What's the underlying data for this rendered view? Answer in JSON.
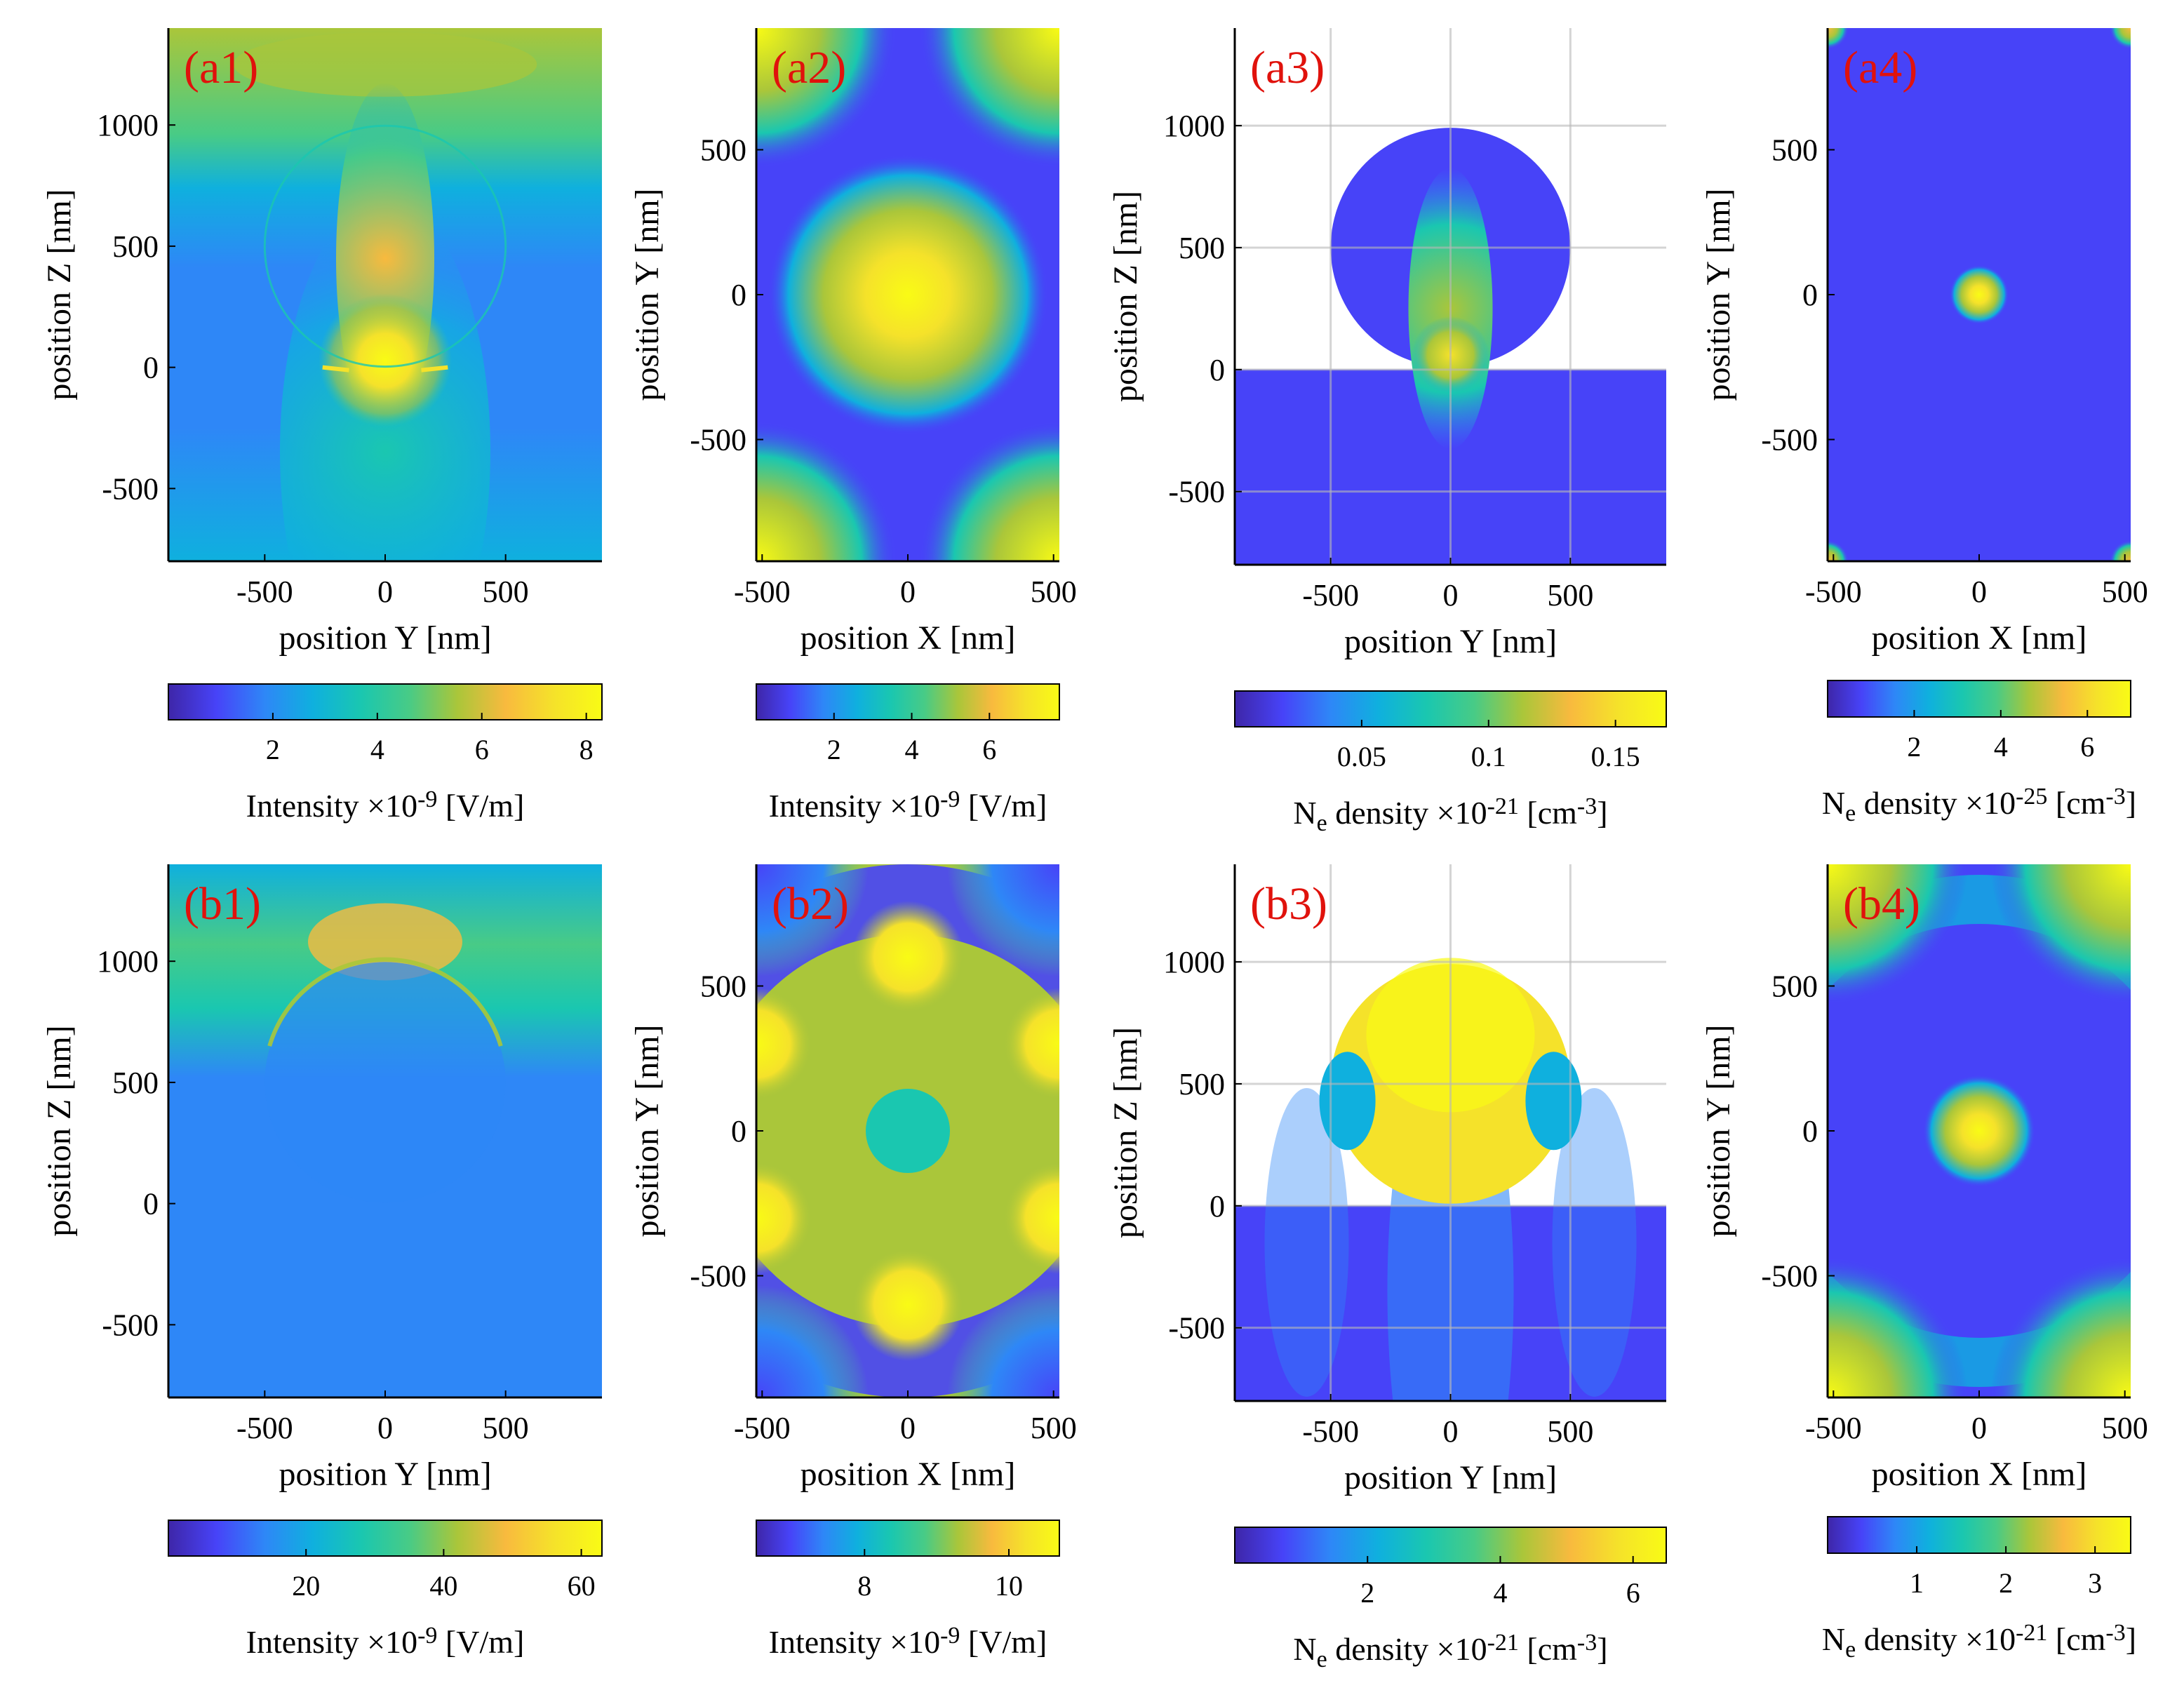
{
  "colors": {
    "panel_label": "#e0120c",
    "grid": "#b8b8b8",
    "colormap": [
      "#3e26a8",
      "#4743f8",
      "#2e87f7",
      "#0fb0de",
      "#1ac7b0",
      "#48cb86",
      "#aac63a",
      "#f8ba3e",
      "#f5e22a",
      "#f9fb15"
    ]
  },
  "chart_data": [
    {
      "id": "a1",
      "type": "heatmap",
      "label": "(a1)",
      "xlabel": "position Y [nm]",
      "ylabel": "position Z [nm]",
      "xlim": [
        -900,
        900
      ],
      "ylim": [
        -800,
        1400
      ],
      "xticks": [
        {
          "v": -500,
          "t": "-500"
        },
        {
          "v": 0,
          "t": "0"
        },
        {
          "v": 500,
          "t": "500"
        }
      ],
      "yticks": [
        {
          "v": -500,
          "t": "-500"
        },
        {
          "v": 0,
          "t": "0"
        },
        {
          "v": 500,
          "t": "500"
        },
        {
          "v": 1000,
          "t": "1000"
        }
      ],
      "particle": {
        "center_z": 500,
        "radius": 500
      },
      "colorbar": {
        "label_pre": "Intensity ×10",
        "label_exp": "-9",
        "label_post": " [V/m]",
        "range": [
          0,
          8.3
        ],
        "ticks": [
          {
            "v": 2,
            "t": "2"
          },
          {
            "v": 4,
            "t": "4"
          },
          {
            "v": 6,
            "t": "6"
          },
          {
            "v": 8,
            "t": "8"
          }
        ]
      }
    },
    {
      "id": "a2",
      "type": "heatmap",
      "label": "(a2)",
      "xlabel": "position X [nm]",
      "ylabel": "position Y [nm]",
      "xlim": [
        -520,
        520
      ],
      "ylim": [
        -920,
        920
      ],
      "xticks": [
        {
          "v": -500,
          "t": "-500"
        },
        {
          "v": 0,
          "t": "0"
        },
        {
          "v": 500,
          "t": "500"
        }
      ],
      "yticks": [
        {
          "v": -500,
          "t": "-500"
        },
        {
          "v": 0,
          "t": "0"
        },
        {
          "v": 500,
          "t": "500"
        }
      ],
      "colorbar": {
        "label_pre": "Intensity ×10",
        "label_exp": "-9",
        "label_post": " [V/m]",
        "range": [
          0,
          7.8
        ],
        "ticks": [
          {
            "v": 2,
            "t": "2"
          },
          {
            "v": 4,
            "t": "4"
          },
          {
            "v": 6,
            "t": "6"
          }
        ]
      }
    },
    {
      "id": "a3",
      "type": "heatmap",
      "label": "(a3)",
      "xlabel": "position Y [nm]",
      "ylabel": "position Z [nm]",
      "xlim": [
        -900,
        900
      ],
      "ylim": [
        -800,
        1400
      ],
      "xticks": [
        {
          "v": -500,
          "t": "-500"
        },
        {
          "v": 0,
          "t": "0"
        },
        {
          "v": 500,
          "t": "500"
        }
      ],
      "yticks": [
        {
          "v": -500,
          "t": "-500"
        },
        {
          "v": 0,
          "t": "0"
        },
        {
          "v": 500,
          "t": "500"
        },
        {
          "v": 1000,
          "t": "1000"
        }
      ],
      "grid": true,
      "particle": {
        "center_z": 500,
        "radius": 500
      },
      "colorbar": {
        "label_pre": "N",
        "label_sub": "e",
        "label_mid": " density ×10",
        "label_exp": "-21",
        "label_post": " [cm",
        "label_exp2": "-3",
        "label_end": "]",
        "range": [
          0,
          0.17
        ],
        "ticks": [
          {
            "v": 0.05,
            "t": "0.05"
          },
          {
            "v": 0.1,
            "t": "0.1"
          },
          {
            "v": 0.15,
            "t": "0.15"
          }
        ]
      }
    },
    {
      "id": "a4",
      "type": "heatmap",
      "label": "(a4)",
      "xlabel": "position X [nm]",
      "ylabel": "position Y [nm]",
      "xlim": [
        -520,
        520
      ],
      "ylim": [
        -920,
        920
      ],
      "xticks": [
        {
          "v": -500,
          "t": "-500"
        },
        {
          "v": 0,
          "t": "0"
        },
        {
          "v": 500,
          "t": "500"
        }
      ],
      "yticks": [
        {
          "v": -500,
          "t": "-500"
        },
        {
          "v": 0,
          "t": "0"
        },
        {
          "v": 500,
          "t": "500"
        }
      ],
      "colorbar": {
        "label_pre": "N",
        "label_sub": "e",
        "label_mid": " density ×10",
        "label_exp": "-25",
        "label_post": " [cm",
        "label_exp2": "-3",
        "label_end": "]",
        "range": [
          0,
          7
        ],
        "ticks": [
          {
            "v": 2,
            "t": "2"
          },
          {
            "v": 4,
            "t": "4"
          },
          {
            "v": 6,
            "t": "6"
          }
        ]
      }
    },
    {
      "id": "b1",
      "type": "heatmap",
      "label": "(b1)",
      "xlabel": "position Y [nm]",
      "ylabel": "position Z [nm]",
      "xlim": [
        -900,
        900
      ],
      "ylim": [
        -800,
        1400
      ],
      "xticks": [
        {
          "v": -500,
          "t": "-500"
        },
        {
          "v": 0,
          "t": "0"
        },
        {
          "v": 500,
          "t": "500"
        }
      ],
      "yticks": [
        {
          "v": -500,
          "t": "-500"
        },
        {
          "v": 0,
          "t": "0"
        },
        {
          "v": 500,
          "t": "500"
        },
        {
          "v": 1000,
          "t": "1000"
        }
      ],
      "particle": {
        "center_z": 500,
        "radius": 500
      },
      "colorbar": {
        "label_pre": "Intensity ×10",
        "label_exp": "-9",
        "label_post": " [V/m]",
        "range": [
          0,
          63
        ],
        "ticks": [
          {
            "v": 20,
            "t": "20"
          },
          {
            "v": 40,
            "t": "40"
          },
          {
            "v": 60,
            "t": "60"
          }
        ]
      }
    },
    {
      "id": "b2",
      "type": "heatmap",
      "label": "(b2)",
      "xlabel": "position X [nm]",
      "ylabel": "position Y [nm]",
      "xlim": [
        -520,
        520
      ],
      "ylim": [
        -920,
        920
      ],
      "xticks": [
        {
          "v": -500,
          "t": "-500"
        },
        {
          "v": 0,
          "t": "0"
        },
        {
          "v": 500,
          "t": "500"
        }
      ],
      "yticks": [
        {
          "v": -500,
          "t": "-500"
        },
        {
          "v": 0,
          "t": "0"
        },
        {
          "v": 500,
          "t": "500"
        }
      ],
      "colorbar": {
        "label_pre": "Intensity ×10",
        "label_exp": "-9",
        "label_post": " [V/m]",
        "range": [
          6.5,
          10.7
        ],
        "ticks": [
          {
            "v": 8,
            "t": "8"
          },
          {
            "v": 10,
            "t": "10"
          }
        ]
      }
    },
    {
      "id": "b3",
      "type": "heatmap",
      "label": "(b3)",
      "xlabel": "position Y [nm]",
      "ylabel": "position Z [nm]",
      "xlim": [
        -900,
        900
      ],
      "ylim": [
        -800,
        1400
      ],
      "xticks": [
        {
          "v": -500,
          "t": "-500"
        },
        {
          "v": 0,
          "t": "0"
        },
        {
          "v": 500,
          "t": "500"
        }
      ],
      "yticks": [
        {
          "v": -500,
          "t": "-500"
        },
        {
          "v": 0,
          "t": "0"
        },
        {
          "v": 500,
          "t": "500"
        },
        {
          "v": 1000,
          "t": "1000"
        }
      ],
      "grid": true,
      "particle": {
        "center_z": 500,
        "radius": 500
      },
      "colorbar": {
        "label_pre": "N",
        "label_sub": "e",
        "label_mid": " density ×10",
        "label_exp": "-21",
        "label_post": " [cm",
        "label_exp2": "-3",
        "label_end": "]",
        "range": [
          0,
          6.5
        ],
        "ticks": [
          {
            "v": 2,
            "t": "2"
          },
          {
            "v": 4,
            "t": "4"
          },
          {
            "v": 6,
            "t": "6"
          }
        ]
      }
    },
    {
      "id": "b4",
      "type": "heatmap",
      "label": "(b4)",
      "xlabel": "position X [nm]",
      "ylabel": "position Y [nm]",
      "xlim": [
        -520,
        520
      ],
      "ylim": [
        -920,
        920
      ],
      "xticks": [
        {
          "v": -500,
          "t": "-500"
        },
        {
          "v": 0,
          "t": "0"
        },
        {
          "v": 500,
          "t": "500"
        }
      ],
      "yticks": [
        {
          "v": -500,
          "t": "-500"
        },
        {
          "v": 0,
          "t": "0"
        },
        {
          "v": 500,
          "t": "500"
        }
      ],
      "colorbar": {
        "label_pre": "N",
        "label_sub": "e",
        "label_mid": " density ×10",
        "label_exp": "-21",
        "label_post": " [cm",
        "label_exp2": "-3",
        "label_end": "]",
        "range": [
          0,
          3.4
        ],
        "ticks": [
          {
            "v": 1,
            "t": "1"
          },
          {
            "v": 2,
            "t": "2"
          },
          {
            "v": 3,
            "t": "3"
          }
        ]
      }
    }
  ]
}
